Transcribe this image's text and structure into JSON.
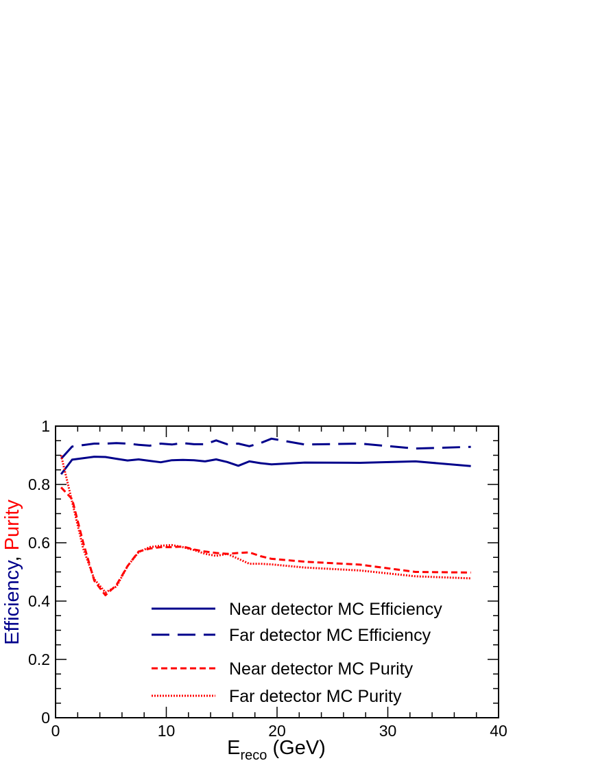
{
  "chart_data": {
    "type": "line",
    "xlim": [
      0,
      40
    ],
    "ylim": [
      0,
      1
    ],
    "x_ticks": [
      "0",
      "10",
      "20",
      "30",
      "40"
    ],
    "y_ticks": [
      "0",
      "0.2",
      "0.4",
      "0.6",
      "0.8",
      "1"
    ],
    "xlabel_main": "E",
    "xlabel_sub": "reco",
    "xlabel_unit": " (GeV)",
    "ylabel_part1": "Efficiency",
    "ylabel_sep": ", ",
    "ylabel_part2": "Purity",
    "legend_placement": "lower-right",
    "colors": {
      "efficiency": "#00008b",
      "purity": "#ff0000",
      "axis": "#000000"
    },
    "series": [
      {
        "name": "Near detector MC Efficiency",
        "color": "#00008b",
        "style": "solid",
        "x": [
          0.5,
          1.5,
          2.5,
          3.5,
          4.5,
          5.5,
          6.5,
          7.5,
          8.5,
          9.5,
          10.5,
          11.5,
          12.5,
          13.5,
          14.5,
          15.5,
          16.5,
          17.5,
          18.5,
          19.5,
          22.5,
          27.5,
          32.5,
          37.5
        ],
        "y": [
          0.835,
          0.885,
          0.89,
          0.895,
          0.894,
          0.888,
          0.882,
          0.886,
          0.881,
          0.876,
          0.883,
          0.884,
          0.883,
          0.879,
          0.886,
          0.877,
          0.864,
          0.879,
          0.873,
          0.869,
          0.875,
          0.874,
          0.879,
          0.863
        ]
      },
      {
        "name": "Far detector MC Efficiency",
        "color": "#00008b",
        "style": "long-dash",
        "x": [
          0.5,
          1.5,
          2.5,
          3.5,
          4.5,
          5.5,
          6.5,
          7.5,
          8.5,
          9.5,
          10.5,
          11.5,
          12.5,
          13.5,
          14.5,
          15.5,
          16.5,
          17.5,
          18.5,
          19.5,
          22.5,
          27.5,
          32.5,
          37.5
        ],
        "y": [
          0.888,
          0.93,
          0.935,
          0.94,
          0.94,
          0.942,
          0.94,
          0.936,
          0.933,
          0.94,
          0.937,
          0.942,
          0.938,
          0.938,
          0.951,
          0.938,
          0.94,
          0.931,
          0.942,
          0.957,
          0.937,
          0.94,
          0.923,
          0.929
        ]
      },
      {
        "name": "Near detector MC Purity",
        "color": "#ff0000",
        "style": "short-dash",
        "x": [
          0.5,
          1.5,
          2.5,
          3.5,
          4.5,
          5.5,
          6.5,
          7.5,
          8.5,
          9.5,
          10.5,
          11.5,
          12.5,
          13.5,
          14.5,
          15.5,
          16.5,
          17.5,
          18.5,
          19.5,
          22.5,
          27.5,
          32.5,
          37.5
        ],
        "y": [
          0.79,
          0.75,
          0.6,
          0.47,
          0.42,
          0.455,
          0.52,
          0.57,
          0.58,
          0.585,
          0.585,
          0.587,
          0.577,
          0.57,
          0.565,
          0.562,
          0.565,
          0.567,
          0.554,
          0.545,
          0.535,
          0.525,
          0.5,
          0.498
        ]
      },
      {
        "name": "Far detector MC Purity",
        "color": "#ff0000",
        "style": "dotted",
        "x": [
          0.5,
          1.5,
          2.5,
          3.5,
          4.5,
          5.5,
          6.5,
          7.5,
          8.5,
          9.5,
          10.5,
          11.5,
          12.5,
          13.5,
          14.5,
          15.5,
          16.5,
          17.5,
          18.5,
          19.5,
          22.5,
          27.5,
          32.5,
          37.5
        ],
        "y": [
          0.9,
          0.74,
          0.58,
          0.475,
          0.43,
          0.45,
          0.52,
          0.568,
          0.585,
          0.59,
          0.592,
          0.585,
          0.575,
          0.562,
          0.555,
          0.562,
          0.545,
          0.528,
          0.528,
          0.526,
          0.515,
          0.505,
          0.485,
          0.478
        ]
      }
    ]
  }
}
